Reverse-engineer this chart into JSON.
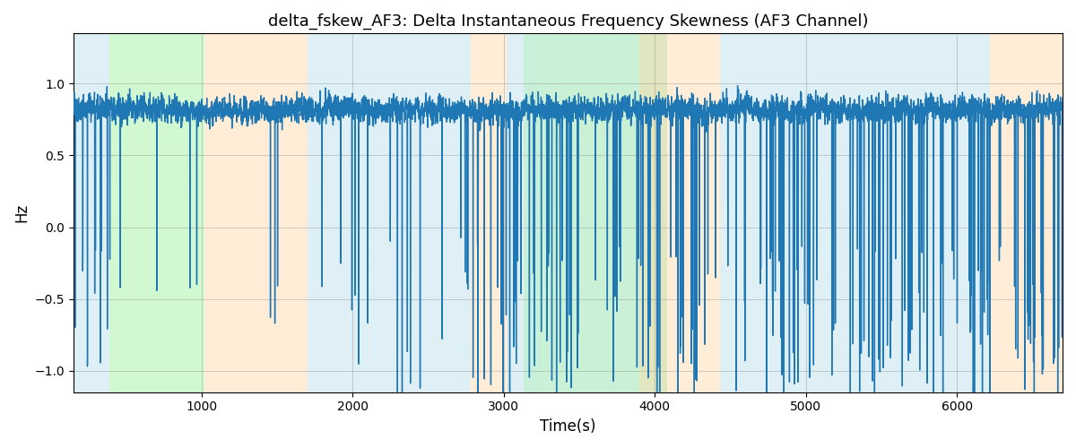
{
  "title": "delta_fskew_AF3: Delta Instantaneous Frequency Skewness (AF3 Channel)",
  "xlabel": "Time(s)",
  "ylabel": "Hz",
  "line_color": "#1f77b4",
  "line_width": 1.0,
  "xlim": [
    150,
    6700
  ],
  "ylim": [
    -1.15,
    1.35
  ],
  "yticks": [
    -1.0,
    -0.5,
    0.0,
    0.5,
    1.0
  ],
  "xticks": [
    1000,
    2000,
    3000,
    4000,
    5000,
    6000
  ],
  "blue_color": "#add8e6",
  "green_color": "#90ee90",
  "orange_color": "#ffd8a8",
  "regions": [
    [
      150,
      390,
      "blue",
      0.4
    ],
    [
      390,
      1020,
      "green",
      0.4
    ],
    [
      1020,
      1700,
      "orange",
      0.45
    ],
    [
      1700,
      2780,
      "blue",
      0.4
    ],
    [
      2780,
      3020,
      "orange",
      0.45
    ],
    [
      3020,
      3130,
      "blue",
      0.4
    ],
    [
      3130,
      3250,
      "green",
      0.4
    ],
    [
      3130,
      3250,
      "blue",
      0.25
    ],
    [
      3250,
      4080,
      "green",
      0.4
    ],
    [
      3250,
      4080,
      "blue",
      0.2
    ],
    [
      3900,
      4430,
      "orange",
      0.45
    ],
    [
      4430,
      6220,
      "blue",
      0.4
    ],
    [
      6220,
      6700,
      "orange",
      0.45
    ]
  ]
}
